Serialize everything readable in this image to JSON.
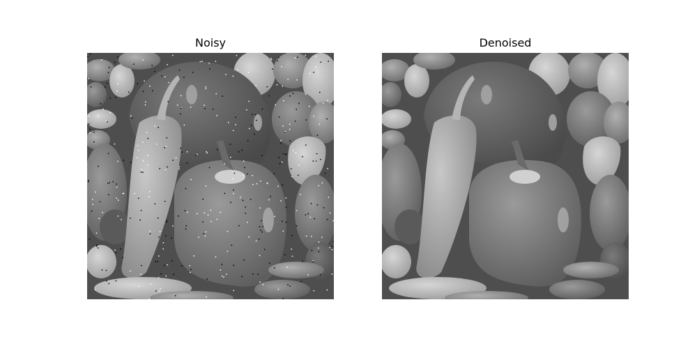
{
  "panels": [
    {
      "title": "Noisy",
      "noise_level": 1
    },
    {
      "title": "Denoised",
      "noise_level": 0
    }
  ]
}
